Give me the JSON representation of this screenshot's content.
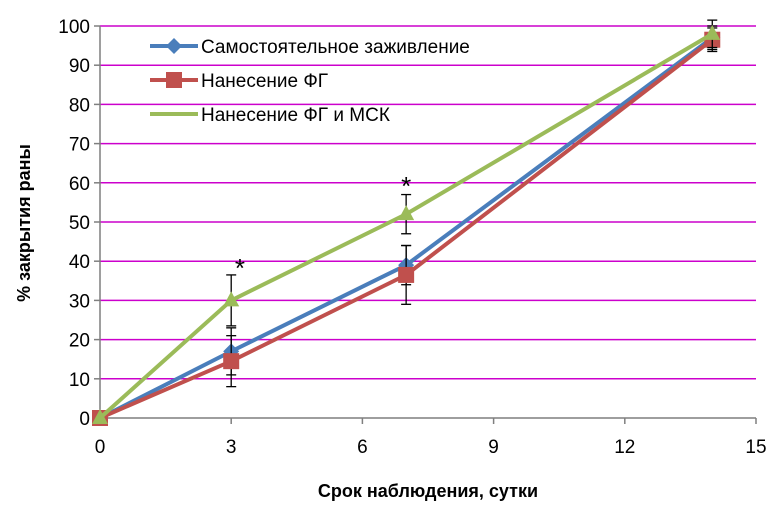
{
  "chart_data": {
    "type": "line",
    "title": "",
    "xlabel": "Срок наблюдения,  сутки",
    "ylabel": "% закрытия раны",
    "xlim": [
      0,
      15
    ],
    "ylim": [
      0,
      100
    ],
    "xticks": [
      0,
      3,
      6,
      9,
      12,
      15
    ],
    "yticks": [
      0,
      10,
      20,
      30,
      40,
      50,
      60,
      70,
      80,
      90,
      100
    ],
    "grid": "horizontal",
    "grid_color": "#cc00cc",
    "legend_position": "top-left",
    "series": [
      {
        "name": "Самостоятельное заживление",
        "color": "#4a7ebb",
        "marker": "diamond",
        "x": [
          0,
          3,
          7,
          14
        ],
        "y": [
          0,
          17,
          39,
          97
        ],
        "err": [
          0,
          6,
          5,
          3
        ]
      },
      {
        "name": "Нанесение ФГ",
        "color": "#c0504d",
        "marker": "square",
        "x": [
          0,
          3,
          7,
          14
        ],
        "y": [
          0,
          14.5,
          36.5,
          96.5
        ],
        "err": [
          0,
          6.5,
          7.5,
          3
        ]
      },
      {
        "name": "Нанесение ФГ и МСК",
        "color": "#9bbb59",
        "marker": "triangle",
        "x": [
          0,
          3,
          7,
          14
        ],
        "y": [
          0,
          30,
          52,
          98
        ],
        "err": [
          0,
          6.5,
          5,
          3.5
        ]
      }
    ],
    "annotations": [
      {
        "text": "*",
        "x": 3.2,
        "y": 40
      },
      {
        "text": "*",
        "x": 7,
        "y": 61
      }
    ]
  }
}
